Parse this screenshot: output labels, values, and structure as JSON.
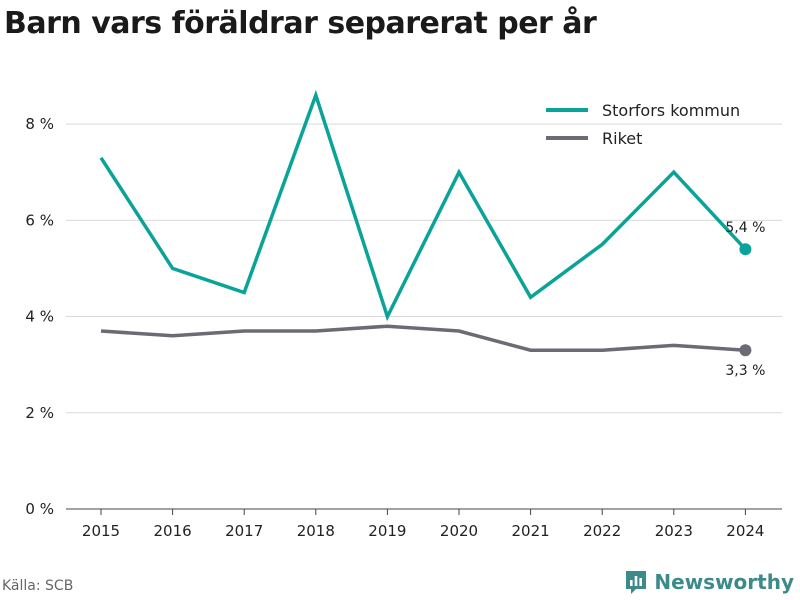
{
  "colors": {
    "storfors": "#0aa398",
    "riket": "#6b6b73",
    "grid": "#d9d9d9",
    "axis": "#444444",
    "brand": "#3d8a8a"
  },
  "chart_data": {
    "type": "line",
    "title": "Barn vars föräldrar separerat per år",
    "x": [
      "2015",
      "2016",
      "2017",
      "2018",
      "2019",
      "2020",
      "2021",
      "2022",
      "2023",
      "2024"
    ],
    "series": [
      {
        "name": "Storfors kommun",
        "values": [
          7.3,
          5.0,
          4.5,
          8.6,
          4.0,
          7.0,
          4.4,
          5.5,
          7.0,
          5.4
        ],
        "end_label": "5,4 %"
      },
      {
        "name": "Riket",
        "values": [
          3.7,
          3.6,
          3.7,
          3.7,
          3.8,
          3.7,
          3.3,
          3.3,
          3.4,
          3.3
        ],
        "end_label": "3,3 %"
      }
    ],
    "ylim": [
      0,
      9
    ],
    "yticks": [
      0,
      2,
      4,
      6,
      8
    ],
    "ytick_labels": [
      "0 %",
      "2 %",
      "4 %",
      "6 %",
      "8 %"
    ],
    "grid": true,
    "legend_position": "top-right"
  },
  "footer": {
    "source": "Källa: SCB",
    "brand": "Newsworthy",
    "brand_icon": "newsworthy-logo-icon"
  }
}
